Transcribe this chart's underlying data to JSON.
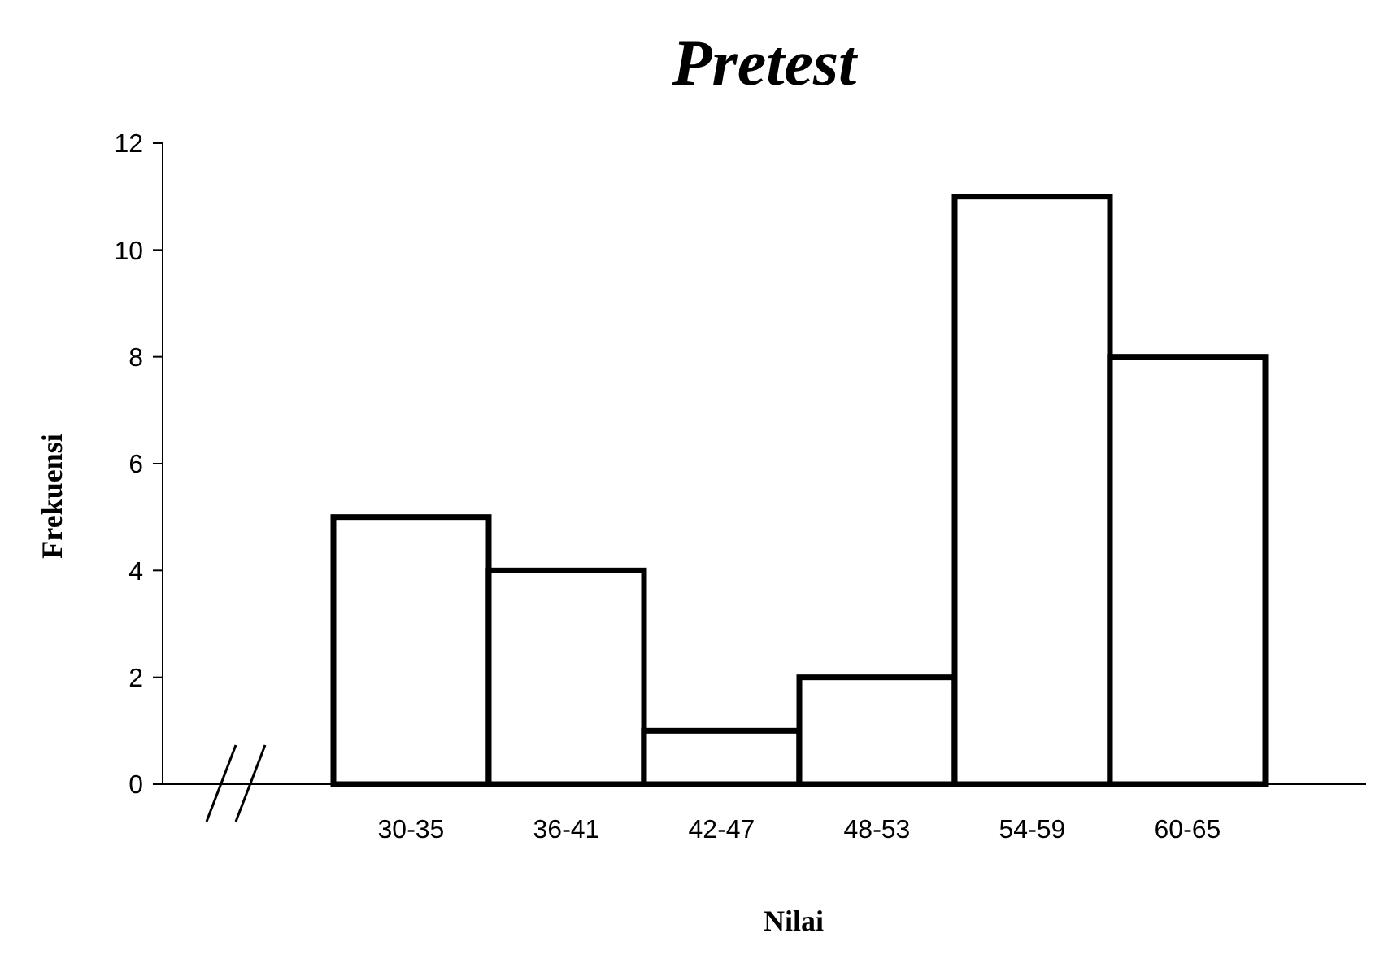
{
  "chart_data": {
    "type": "bar",
    "title": "Pretest",
    "xlabel": "Nilai",
    "ylabel": "Frekuensi",
    "categories": [
      "30-35",
      "36-41",
      "42-47",
      "48-53",
      "54-59",
      "60-65"
    ],
    "values": [
      5,
      4,
      1,
      2,
      11,
      8
    ],
    "color": "#ffffff",
    "ylim": [
      0,
      12
    ],
    "yticks": [
      0,
      2,
      4,
      6,
      8,
      10,
      12
    ],
    "grid": false
  }
}
